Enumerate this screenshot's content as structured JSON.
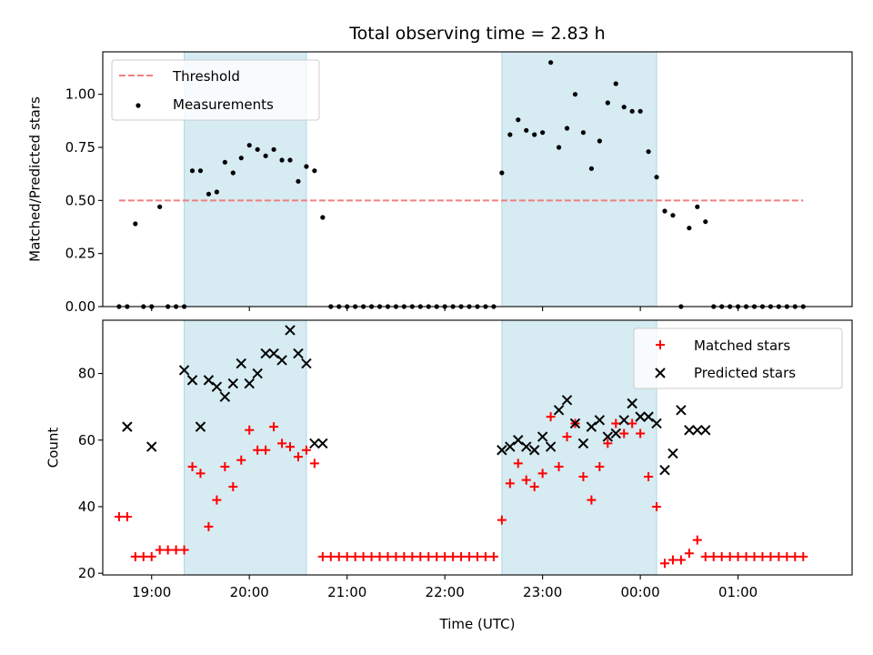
{
  "chart_data": [
    {
      "type": "scatter",
      "title": "Total observing time = 2.83 h",
      "xlabel": "",
      "ylabel": "Matched/Predicted stars",
      "xlim": [
        "18:30",
        "02:10"
      ],
      "ylim": [
        0,
        1.2
      ],
      "yticks": [
        0.0,
        0.25,
        0.5,
        0.75,
        1.0
      ],
      "ytick_labels": [
        "0.00",
        "0.25",
        "0.50",
        "0.75",
        "1.00"
      ],
      "grid": false,
      "legend_position": "top-left",
      "shaded_intervals": [
        [
          "19:20",
          "20:35"
        ],
        [
          "22:35",
          "00:10"
        ]
      ],
      "threshold": {
        "name": "Threshold",
        "value": 0.5,
        "x_start": "18:40",
        "x_end": "01:40",
        "color": "#f08080",
        "style": "dashed"
      },
      "series": [
        {
          "name": "Measurements",
          "color": "#000000",
          "marker": "dot",
          "x": [
            "18:40",
            "18:45",
            "18:50",
            "18:55",
            "19:00",
            "19:05",
            "19:10",
            "19:15",
            "19:20",
            "19:25",
            "19:30",
            "19:35",
            "19:40",
            "19:45",
            "19:50",
            "19:55",
            "20:00",
            "20:05",
            "20:10",
            "20:15",
            "20:20",
            "20:25",
            "20:30",
            "20:35",
            "20:40",
            "20:45",
            "20:50",
            "20:55",
            "21:00",
            "21:05",
            "21:10",
            "21:15",
            "21:20",
            "21:25",
            "21:30",
            "21:35",
            "21:40",
            "21:45",
            "21:50",
            "21:55",
            "22:00",
            "22:05",
            "22:10",
            "22:15",
            "22:20",
            "22:25",
            "22:30",
            "22:35",
            "22:40",
            "22:45",
            "22:50",
            "22:55",
            "23:00",
            "23:05",
            "23:10",
            "23:15",
            "23:20",
            "23:25",
            "23:30",
            "23:35",
            "23:40",
            "23:45",
            "23:50",
            "23:55",
            "00:00",
            "00:05",
            "00:10",
            "00:15",
            "00:20",
            "00:25",
            "00:30",
            "00:35",
            "00:40",
            "00:45",
            "00:50",
            "00:55",
            "01:00",
            "01:05",
            "01:10",
            "01:15",
            "01:20",
            "01:25",
            "01:30",
            "01:35",
            "01:40"
          ],
          "y": [
            0.0,
            0.0,
            0.39,
            0.0,
            0.0,
            0.47,
            0.0,
            0.0,
            0.0,
            0.64,
            0.64,
            0.53,
            0.54,
            0.68,
            0.63,
            0.7,
            0.76,
            0.74,
            0.71,
            0.74,
            0.69,
            0.69,
            0.59,
            0.66,
            0.64,
            0.42,
            0.0,
            0.0,
            0.0,
            0.0,
            0.0,
            0.0,
            0.0,
            0.0,
            0.0,
            0.0,
            0.0,
            0.0,
            0.0,
            0.0,
            0.0,
            0.0,
            0.0,
            0.0,
            0.0,
            0.0,
            0.0,
            0.63,
            0.81,
            0.88,
            0.83,
            0.81,
            0.82,
            1.15,
            0.75,
            0.84,
            1.0,
            0.82,
            0.65,
            0.78,
            0.96,
            1.05,
            0.94,
            0.92,
            0.92,
            0.73,
            0.61,
            0.45,
            0.43,
            0.0,
            0.37,
            0.47,
            0.4,
            0.0,
            0.0,
            0.0,
            0.0,
            0.0,
            0.0,
            0.0,
            0.0,
            0.0,
            0.0,
            0.0,
            0.0
          ]
        }
      ]
    },
    {
      "type": "scatter",
      "title": "",
      "xlabel": "Time (UTC)",
      "ylabel": "Count",
      "xlim": [
        "18:30",
        "02:10"
      ],
      "xticks": [
        "19:00",
        "20:00",
        "21:00",
        "22:00",
        "23:00",
        "00:00",
        "01:00"
      ],
      "ylim": [
        19.5,
        96
      ],
      "yticks": [
        20,
        40,
        60,
        80
      ],
      "grid": false,
      "legend_position": "top-right",
      "shaded_intervals": [
        [
          "19:20",
          "20:35"
        ],
        [
          "22:35",
          "00:10"
        ]
      ],
      "series": [
        {
          "name": "Matched stars",
          "color": "#ff0000",
          "marker": "plus",
          "x": [
            "18:40",
            "18:45",
            "18:50",
            "18:55",
            "19:00",
            "19:05",
            "19:10",
            "19:15",
            "19:20",
            "19:25",
            "19:30",
            "19:35",
            "19:40",
            "19:45",
            "19:50",
            "19:55",
            "20:00",
            "20:05",
            "20:10",
            "20:15",
            "20:20",
            "20:25",
            "20:30",
            "20:35",
            "20:40",
            "20:45",
            "20:50",
            "20:55",
            "21:00",
            "21:05",
            "21:10",
            "21:15",
            "21:20",
            "21:25",
            "21:30",
            "21:35",
            "21:40",
            "21:45",
            "21:50",
            "21:55",
            "22:00",
            "22:05",
            "22:10",
            "22:15",
            "22:20",
            "22:25",
            "22:30",
            "22:35",
            "22:40",
            "22:45",
            "22:50",
            "22:55",
            "23:00",
            "23:05",
            "23:10",
            "23:15",
            "23:20",
            "23:25",
            "23:30",
            "23:35",
            "23:40",
            "23:45",
            "23:50",
            "23:55",
            "00:00",
            "00:05",
            "00:10",
            "00:15",
            "00:20",
            "00:25",
            "00:30",
            "00:35",
            "00:40",
            "00:45",
            "00:50",
            "00:55",
            "01:00",
            "01:05",
            "01:10",
            "01:15",
            "01:20",
            "01:25",
            "01:30",
            "01:35",
            "01:40"
          ],
          "y": [
            37,
            37,
            25,
            25,
            25,
            27,
            27,
            27,
            27,
            52,
            50,
            34,
            42,
            52,
            46,
            54,
            63,
            57,
            57,
            64,
            59,
            58,
            55,
            57,
            53,
            25,
            25,
            25,
            25,
            25,
            25,
            25,
            25,
            25,
            25,
            25,
            25,
            25,
            25,
            25,
            25,
            25,
            25,
            25,
            25,
            25,
            25,
            36,
            47,
            53,
            48,
            46,
            50,
            67,
            52,
            61,
            65,
            49,
            42,
            52,
            59,
            65,
            62,
            65,
            62,
            49,
            40,
            23,
            24,
            24,
            26,
            30,
            25,
            25,
            25,
            25,
            25,
            25,
            25,
            25,
            25,
            25,
            25,
            25,
            25
          ]
        },
        {
          "name": "Predicted stars",
          "color": "#000000",
          "marker": "x",
          "x": [
            "18:45",
            "19:00",
            "19:20",
            "19:25",
            "19:30",
            "19:35",
            "19:40",
            "19:45",
            "19:50",
            "19:55",
            "20:00",
            "20:05",
            "20:10",
            "20:15",
            "20:20",
            "20:25",
            "20:30",
            "20:35",
            "20:40",
            "20:45",
            "22:35",
            "22:40",
            "22:45",
            "22:50",
            "22:55",
            "23:00",
            "23:05",
            "23:10",
            "23:15",
            "23:20",
            "23:25",
            "23:30",
            "23:35",
            "23:40",
            "23:45",
            "23:50",
            "23:55",
            "00:00",
            "00:05",
            "00:10",
            "00:15",
            "00:20",
            "00:25",
            "00:30",
            "00:35",
            "00:40"
          ],
          "y": [
            64,
            58,
            81,
            78,
            64,
            78,
            76,
            73,
            77,
            83,
            77,
            80,
            86,
            86,
            84,
            93,
            86,
            83,
            59,
            59,
            57,
            58,
            60,
            58,
            57,
            61,
            58,
            69,
            72,
            65,
            59,
            64,
            66,
            61,
            62,
            66,
            71,
            67,
            67,
            65,
            51,
            56,
            69,
            63,
            63,
            63
          ]
        }
      ]
    }
  ]
}
